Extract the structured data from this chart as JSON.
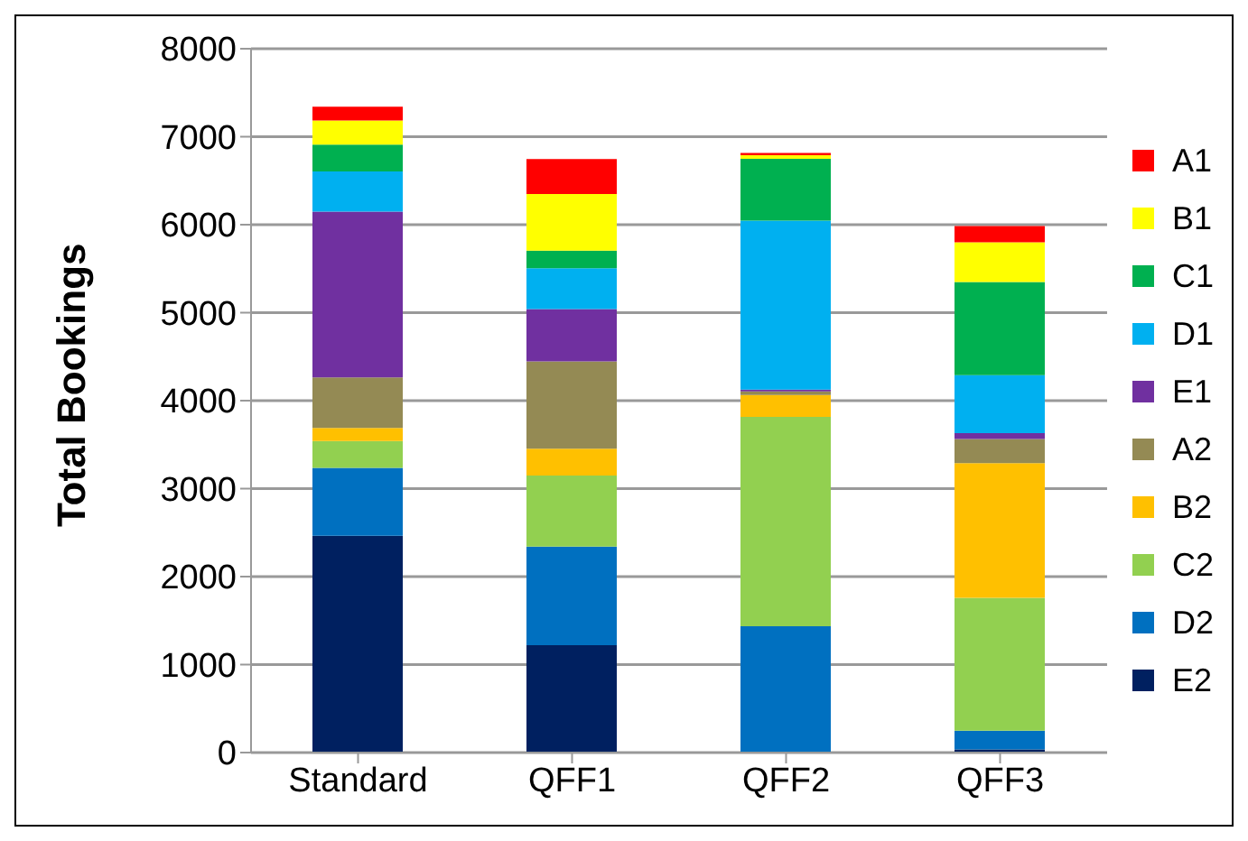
{
  "chart_data": {
    "type": "bar",
    "stacked": true,
    "ylabel": "Total Bookings",
    "categories": [
      "Standard",
      "QFF1",
      "QFF2",
      "QFF3"
    ],
    "series": [
      {
        "name": "E2",
        "color": "#002060",
        "values": [
          2465,
          1220,
          0,
          35
        ]
      },
      {
        "name": "D2",
        "color": "#0070c0",
        "values": [
          770,
          1120,
          1435,
          215
        ]
      },
      {
        "name": "C2",
        "color": "#92d050",
        "values": [
          305,
          810,
          2380,
          1510
        ]
      },
      {
        "name": "B2",
        "color": "#ffc000",
        "values": [
          150,
          305,
          250,
          1530
        ]
      },
      {
        "name": "A2",
        "color": "#948a54",
        "values": [
          575,
          990,
          40,
          275
        ]
      },
      {
        "name": "E1",
        "color": "#7030a0",
        "values": [
          1885,
          595,
          20,
          65
        ]
      },
      {
        "name": "D1",
        "color": "#00b0f0",
        "values": [
          455,
          465,
          1920,
          660
        ]
      },
      {
        "name": "C1",
        "color": "#00b050",
        "values": [
          305,
          200,
          705,
          1060
        ]
      },
      {
        "name": "B1",
        "color": "#ffff00",
        "values": [
          275,
          645,
          40,
          450
        ]
      },
      {
        "name": "A1",
        "color": "#ff0000",
        "values": [
          155,
          395,
          25,
          185
        ]
      }
    ],
    "ylim": [
      0,
      8000
    ],
    "yticks": [
      0,
      1000,
      2000,
      3000,
      4000,
      5000,
      6000,
      7000,
      8000
    ],
    "grid": "y",
    "legend": "right"
  }
}
